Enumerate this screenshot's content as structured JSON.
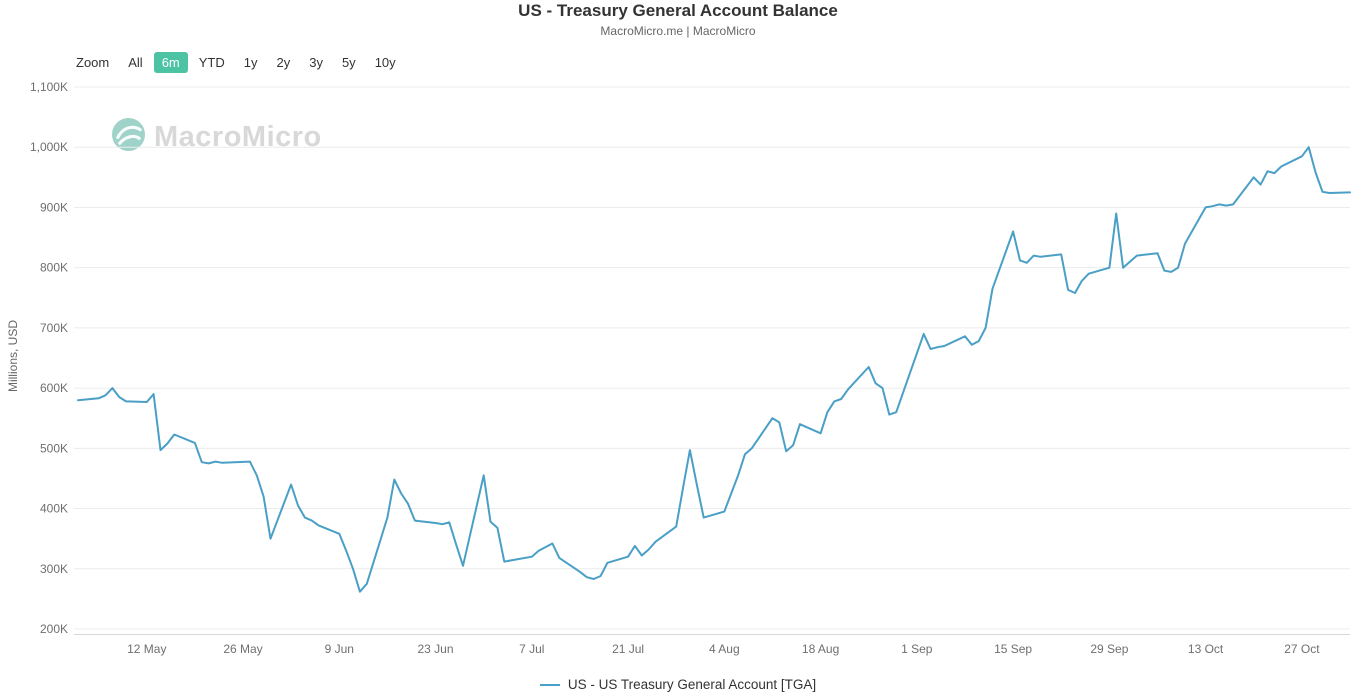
{
  "header": {
    "title": "US - Treasury General Account Balance",
    "subtitle": "MacroMicro.me | MacroMicro"
  },
  "toolbar": {
    "zoom_label": "Zoom",
    "buttons": [
      {
        "label": "All",
        "active": false
      },
      {
        "label": "6m",
        "active": true
      },
      {
        "label": "YTD",
        "active": false
      },
      {
        "label": "1y",
        "active": false
      },
      {
        "label": "2y",
        "active": false
      },
      {
        "label": "3y",
        "active": false
      },
      {
        "label": "5y",
        "active": false
      },
      {
        "label": "10y",
        "active": false
      }
    ]
  },
  "watermark": {
    "text": "MacroMicro",
    "logo_icon": "macromicro-logo"
  },
  "y_axis": {
    "title": "Millions, USD",
    "ticks": [
      {
        "label": "1,100K",
        "value": 1100
      },
      {
        "label": "1,000K",
        "value": 1000
      },
      {
        "label": "900K",
        "value": 900
      },
      {
        "label": "800K",
        "value": 800
      },
      {
        "label": "700K",
        "value": 700
      },
      {
        "label": "600K",
        "value": 600
      },
      {
        "label": "500K",
        "value": 500
      },
      {
        "label": "400K",
        "value": 400
      },
      {
        "label": "300K",
        "value": 300
      },
      {
        "label": "200K",
        "value": 200
      }
    ]
  },
  "x_axis": {
    "ticks": [
      {
        "label": "12 May",
        "date": "2025-05-12"
      },
      {
        "label": "26 May",
        "date": "2025-05-26"
      },
      {
        "label": "9 Jun",
        "date": "2025-06-09"
      },
      {
        "label": "23 Jun",
        "date": "2025-06-23"
      },
      {
        "label": "7 Jul",
        "date": "2025-07-07"
      },
      {
        "label": "21 Jul",
        "date": "2025-07-21"
      },
      {
        "label": "4 Aug",
        "date": "2025-08-04"
      },
      {
        "label": "18 Aug",
        "date": "2025-08-18"
      },
      {
        "label": "1 Sep",
        "date": "2025-09-01"
      },
      {
        "label": "15 Sep",
        "date": "2025-09-15"
      },
      {
        "label": "29 Sep",
        "date": "2025-09-29"
      },
      {
        "label": "13 Oct",
        "date": "2025-10-13"
      },
      {
        "label": "27 Oct",
        "date": "2025-10-27"
      }
    ]
  },
  "legend": {
    "label": "US - US Treasury General Account [TGA]",
    "color": "#4A9FC6"
  },
  "colors": {
    "series_line": "#4A9FC6",
    "active_button_bg": "#4CC4A4",
    "active_button_text": "#FFFFFF",
    "grid": "#ECECEC",
    "axis_line": "#D8D8D8",
    "watermark_logo": "#5FB5A6",
    "watermark_text": "#D8D8D8"
  },
  "chart_data": {
    "type": "line",
    "title": "US - Treasury General Account Balance",
    "subtitle": "MacroMicro.me | MacroMicro",
    "xlabel": "",
    "ylabel": "Millions, USD",
    "unit": "K = thousands of millions USD",
    "ylim": [
      200,
      1100
    ],
    "grid": true,
    "legend_position": "bottom",
    "series": [
      {
        "name": "US - US Treasury General Account [TGA]",
        "color": "#4A9FC6",
        "points": [
          [
            "2025-05-02",
            580
          ],
          [
            "2025-05-05",
            583
          ],
          [
            "2025-05-06",
            588
          ],
          [
            "2025-05-07",
            600
          ],
          [
            "2025-05-08",
            585
          ],
          [
            "2025-05-09",
            578
          ],
          [
            "2025-05-12",
            577
          ],
          [
            "2025-05-13",
            590
          ],
          [
            "2025-05-14",
            497
          ],
          [
            "2025-05-15",
            508
          ],
          [
            "2025-05-16",
            523
          ],
          [
            "2025-05-19",
            509
          ],
          [
            "2025-05-20",
            477
          ],
          [
            "2025-05-21",
            475
          ],
          [
            "2025-05-22",
            478
          ],
          [
            "2025-05-23",
            476
          ],
          [
            "2025-05-27",
            478
          ],
          [
            "2025-05-28",
            455
          ],
          [
            "2025-05-29",
            420
          ],
          [
            "2025-05-30",
            350
          ],
          [
            "2025-06-02",
            440
          ],
          [
            "2025-06-03",
            405
          ],
          [
            "2025-06-04",
            385
          ],
          [
            "2025-06-05",
            380
          ],
          [
            "2025-06-06",
            372
          ],
          [
            "2025-06-09",
            358
          ],
          [
            "2025-06-10",
            330
          ],
          [
            "2025-06-11",
            300
          ],
          [
            "2025-06-12",
            262
          ],
          [
            "2025-06-13",
            275
          ],
          [
            "2025-06-16",
            385
          ],
          [
            "2025-06-17",
            448
          ],
          [
            "2025-06-18",
            425
          ],
          [
            "2025-06-19",
            408
          ],
          [
            "2025-06-20",
            380
          ],
          [
            "2025-06-23",
            376
          ],
          [
            "2025-06-24",
            374
          ],
          [
            "2025-06-25",
            377
          ],
          [
            "2025-06-26",
            340
          ],
          [
            "2025-06-27",
            305
          ],
          [
            "2025-06-30",
            455
          ],
          [
            "2025-07-01",
            378
          ],
          [
            "2025-07-02",
            368
          ],
          [
            "2025-07-03",
            312
          ],
          [
            "2025-07-07",
            320
          ],
          [
            "2025-07-08",
            330
          ],
          [
            "2025-07-09",
            336
          ],
          [
            "2025-07-10",
            342
          ],
          [
            "2025-07-11",
            318
          ],
          [
            "2025-07-14",
            295
          ],
          [
            "2025-07-15",
            286
          ],
          [
            "2025-07-16",
            283
          ],
          [
            "2025-07-17",
            288
          ],
          [
            "2025-07-18",
            310
          ],
          [
            "2025-07-21",
            320
          ],
          [
            "2025-07-22",
            338
          ],
          [
            "2025-07-23",
            322
          ],
          [
            "2025-07-24",
            332
          ],
          [
            "2025-07-25",
            345
          ],
          [
            "2025-07-28",
            370
          ],
          [
            "2025-07-29",
            435
          ],
          [
            "2025-07-30",
            497
          ],
          [
            "2025-07-31",
            440
          ],
          [
            "2025-08-01",
            385
          ],
          [
            "2025-08-04",
            395
          ],
          [
            "2025-08-05",
            425
          ],
          [
            "2025-08-06",
            455
          ],
          [
            "2025-08-07",
            490
          ],
          [
            "2025-08-08",
            500
          ],
          [
            "2025-08-11",
            550
          ],
          [
            "2025-08-12",
            543
          ],
          [
            "2025-08-13",
            495
          ],
          [
            "2025-08-14",
            505
          ],
          [
            "2025-08-15",
            540
          ],
          [
            "2025-08-18",
            525
          ],
          [
            "2025-08-19",
            560
          ],
          [
            "2025-08-20",
            578
          ],
          [
            "2025-08-21",
            582
          ],
          [
            "2025-08-22",
            598
          ],
          [
            "2025-08-25",
            635
          ],
          [
            "2025-08-26",
            608
          ],
          [
            "2025-08-27",
            600
          ],
          [
            "2025-08-28",
            556
          ],
          [
            "2025-08-29",
            560
          ],
          [
            "2025-09-02",
            690
          ],
          [
            "2025-09-03",
            665
          ],
          [
            "2025-09-04",
            668
          ],
          [
            "2025-09-05",
            670
          ],
          [
            "2025-09-08",
            686
          ],
          [
            "2025-09-09",
            672
          ],
          [
            "2025-09-10",
            678
          ],
          [
            "2025-09-11",
            700
          ],
          [
            "2025-09-12",
            765
          ],
          [
            "2025-09-15",
            860
          ],
          [
            "2025-09-16",
            812
          ],
          [
            "2025-09-17",
            808
          ],
          [
            "2025-09-18",
            820
          ],
          [
            "2025-09-19",
            818
          ],
          [
            "2025-09-22",
            822
          ],
          [
            "2025-09-23",
            763
          ],
          [
            "2025-09-24",
            758
          ],
          [
            "2025-09-25",
            778
          ],
          [
            "2025-09-26",
            790
          ],
          [
            "2025-09-29",
            800
          ],
          [
            "2025-09-30",
            890
          ],
          [
            "2025-10-01",
            800
          ],
          [
            "2025-10-02",
            810
          ],
          [
            "2025-10-03",
            820
          ],
          [
            "2025-10-06",
            824
          ],
          [
            "2025-10-07",
            795
          ],
          [
            "2025-10-08",
            793
          ],
          [
            "2025-10-09",
            800
          ],
          [
            "2025-10-10",
            840
          ],
          [
            "2025-10-13",
            900
          ],
          [
            "2025-10-14",
            902
          ],
          [
            "2025-10-15",
            905
          ],
          [
            "2025-10-16",
            903
          ],
          [
            "2025-10-17",
            905
          ],
          [
            "2025-10-20",
            950
          ],
          [
            "2025-10-21",
            938
          ],
          [
            "2025-10-22",
            960
          ],
          [
            "2025-10-23",
            957
          ],
          [
            "2025-10-24",
            968
          ],
          [
            "2025-10-27",
            985
          ],
          [
            "2025-10-28",
            1000
          ],
          [
            "2025-10-29",
            958
          ],
          [
            "2025-10-30",
            926
          ],
          [
            "2025-10-31",
            924
          ],
          [
            "2025-11-03",
            925
          ]
        ]
      }
    ]
  }
}
